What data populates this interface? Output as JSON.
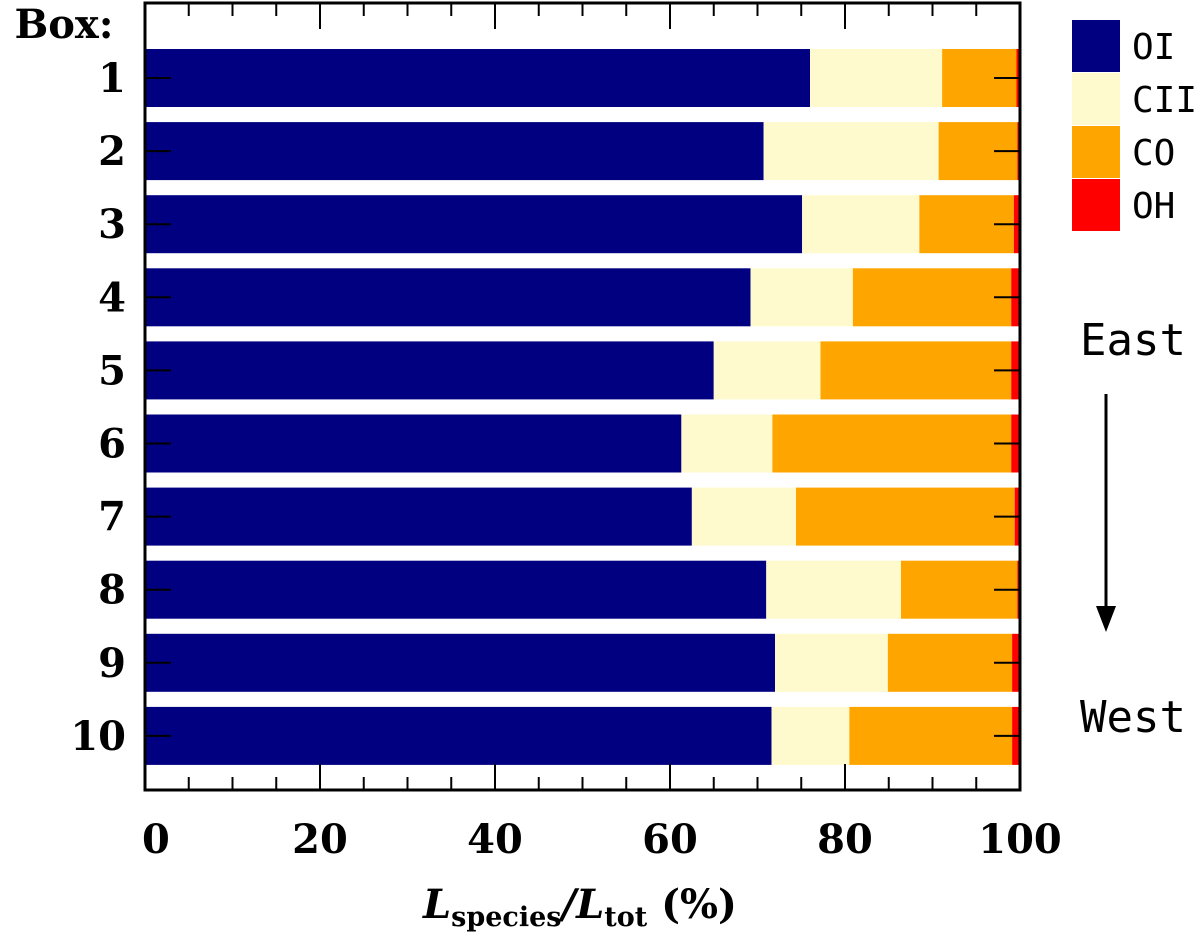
{
  "chart_data": {
    "type": "bar",
    "orientation": "horizontal",
    "stacked": true,
    "categories_title": "Box:",
    "categories": [
      "1",
      "2",
      "3",
      "4",
      "5",
      "6",
      "7",
      "8",
      "9",
      "10"
    ],
    "series": [
      {
        "name": "OI",
        "color": "#000080",
        "values": [
          76.0,
          70.7,
          75.1,
          69.2,
          65.0,
          61.3,
          62.5,
          71.0,
          72.0,
          71.6
        ]
      },
      {
        "name": "CII",
        "color": "#FFFACD",
        "values": [
          15.1,
          20.0,
          13.4,
          11.7,
          12.2,
          10.4,
          11.9,
          15.4,
          12.9,
          8.9
        ]
      },
      {
        "name": "CO",
        "color": "#FFA500",
        "values": [
          8.5,
          9.0,
          10.8,
          18.1,
          21.8,
          27.3,
          25.0,
          13.3,
          14.2,
          18.6
        ]
      },
      {
        "name": "OH",
        "color": "#FF0000",
        "values": [
          0.3,
          0.3,
          0.7,
          1.0,
          1.0,
          1.0,
          0.6,
          0.3,
          0.9,
          0.9
        ]
      }
    ],
    "xlim": [
      0,
      100
    ],
    "xticks": [
      "0",
      "20",
      "40",
      "60",
      "80",
      "100"
    ],
    "xlabel": {
      "main1": "L",
      "sub1": "species",
      "sep": "/",
      "main2": "L",
      "sub2": "tot",
      "suffix": " (%)"
    },
    "legend": "top-right, outside plot",
    "annotations": {
      "east": "East",
      "west": "West"
    },
    "grid": false
  }
}
